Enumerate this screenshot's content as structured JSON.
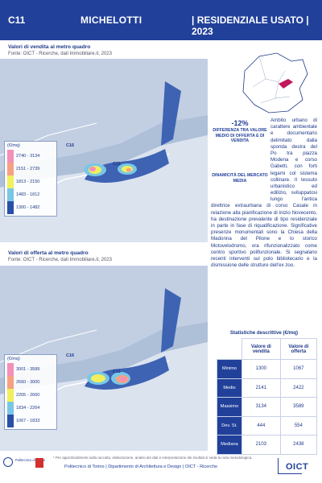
{
  "header": {
    "code": "C11",
    "name": "MICHELOTTI",
    "type": "| RESIDENZIALE USATO | 2023"
  },
  "map_sale": {
    "title": "Valori di vendita al metro quadro",
    "source": "Fonte: OICT - Ricerche, dati Immobiliare.it, 2023",
    "label_c16": "C16",
    "label_c11": "C11",
    "legend_unit": "(€/mq)",
    "legend": [
      {
        "label": "2740 - 3134",
        "color": "#f58fb7"
      },
      {
        "label": "2151 - 2739",
        "color": "#f6a183"
      },
      {
        "label": "1813 - 2150",
        "color": "#f2ef5e"
      },
      {
        "label": "1483 - 1812",
        "color": "#79c7e6"
      },
      {
        "label": "1300 - 1482",
        "color": "#2a4fa8"
      }
    ]
  },
  "map_offer": {
    "title": "Valori di offerta al metro quadro",
    "source": "Fonte: OICT - Ricerche, dati Immobiliare.it, 2023",
    "label_c16": "C16",
    "label_c11": "C11",
    "legend_unit": "(€/mq)",
    "legend": [
      {
        "label": "3001 - 3589",
        "color": "#f58fb7"
      },
      {
        "label": "2660 - 3000",
        "color": "#f6a183"
      },
      {
        "label": "2265 - 2660",
        "color": "#f2ef5e"
      },
      {
        "label": "1834 - 2264",
        "color": "#79c7e6"
      },
      {
        "label": "1067 - 1833",
        "color": "#2a4fa8"
      }
    ]
  },
  "highlight": {
    "percent": "-12%",
    "description": "DIFFERENZA TRA VALORE MEDIO DI OFFERTA E DI VENDITA",
    "dynamics": "DINAMICITÀ DEL MERCATO MEDIA"
  },
  "description": "Ambito urbano di carattere ambientale e documentario delimitato dalla sponda destra del Po tra piazza Modena e corso Gabetti, con forti legami col sistema collinare. Il tessuto urbanistico ed edilizio, sviluppatosi lungo l'antica direttrice extraurbana di corso Casale in relazione alla pianificazione di inizio Novecento, ha destinazione prevalente di tipo residenziale in parte in fase di riqualificazione. Significative presenze monumentali sono la Chiesa della Madonna del Pilone e lo storico Motovelodromo, ora rifunzionalizzato come centro sportivo polifunzionale. Si segnalano recenti interventi sul polo bibliotecario e la dismissione delle strutture dell'ex zoo.",
  "stats": {
    "title": "Statistiche descrittive (€/mq)",
    "col_sale": "Valore di vendita",
    "col_offer": "Valore di offerta",
    "rows": [
      {
        "label": "Minimo",
        "sale": "1300",
        "offer": "1067"
      },
      {
        "label": "Medio",
        "sale": "2141",
        "offer": "2422"
      },
      {
        "label": "Massimo",
        "sale": "3134",
        "offer": "3589"
      },
      {
        "label": "Dev. St.",
        "sale": "444",
        "offer": "554"
      },
      {
        "label": "Mediana",
        "sale": "2103",
        "offer": "2438"
      }
    ]
  },
  "footer": {
    "footnote": "* Per approfondimenti sulla raccolta, elaborazione, analisi dei dati e interpretazione dei risultati si veda la nota metodologica.",
    "line": "Politecnico di Torino | Dipartimento di Architettura e Design | OICT - Ricerche",
    "polito_logo": "Politecnico di Torino",
    "oict_logo": "OICT"
  },
  "colors": {
    "primary": "#21409a",
    "river": "#c9d7ea",
    "zone": "#3e63b3"
  }
}
